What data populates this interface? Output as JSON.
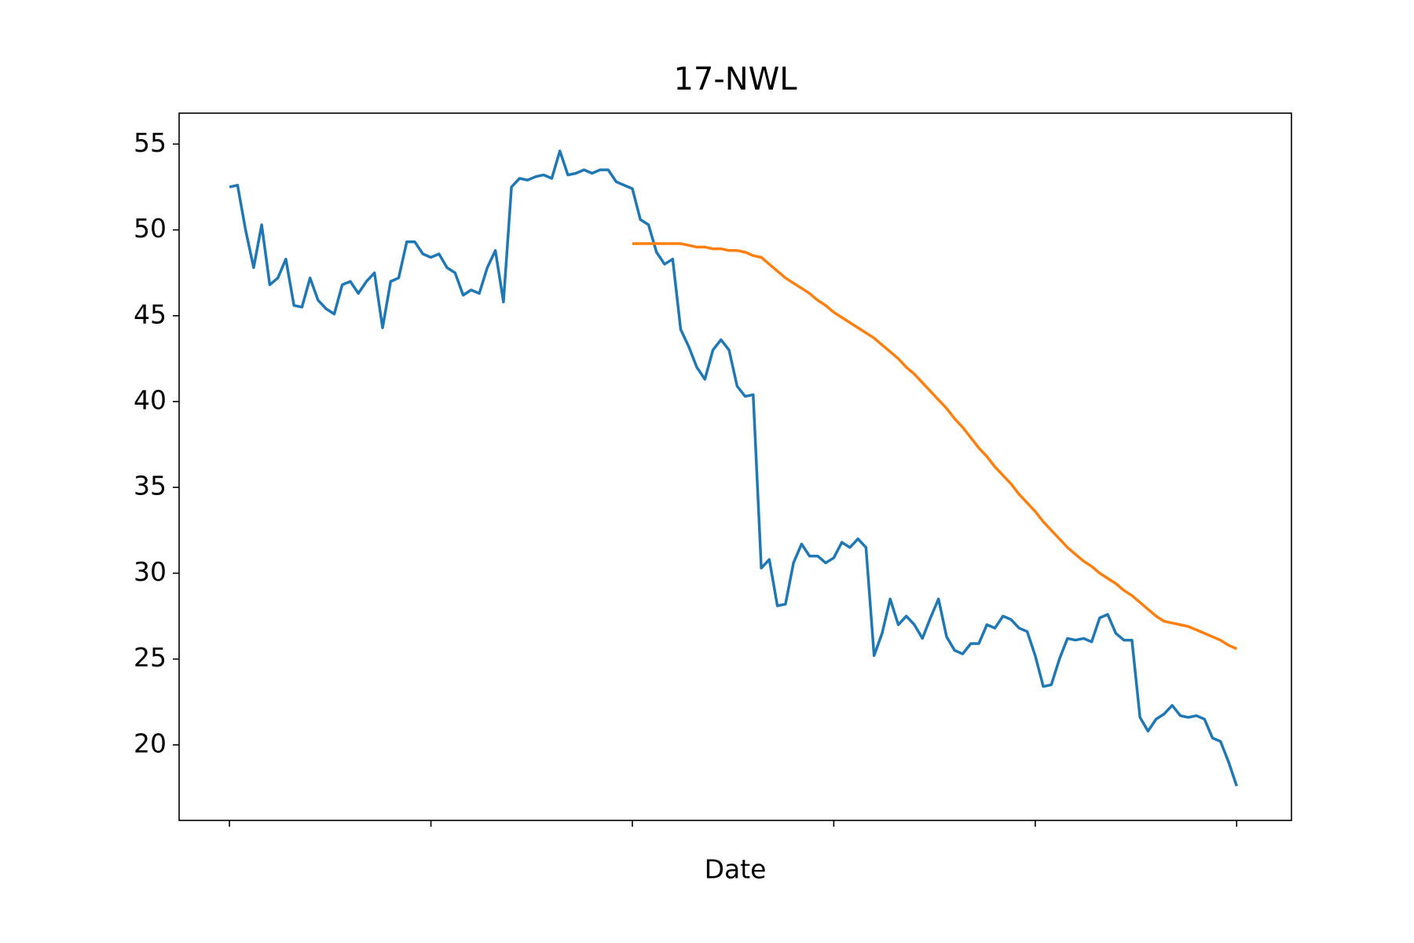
{
  "chart_data": {
    "type": "line",
    "title": "17-NWL",
    "x_label": "Date",
    "series": [
      {
        "color": "#1f77b4",
        "values": [
          52.5,
          52.6,
          50,
          47.8,
          50.3,
          46.8,
          47.2,
          48.3,
          45.6,
          45.5,
          47.2,
          45.9,
          45.4,
          45.1,
          46.8,
          47.0,
          46.3,
          47.0,
          47.5,
          44.3,
          47.0,
          47.2,
          49.3,
          49.3,
          48.6,
          48.4,
          48.6,
          47.8,
          47.5,
          46.2,
          46.5,
          46.3,
          47.8,
          48.8,
          45.8,
          52.5,
          53,
          52.9,
          53.1,
          53.2,
          53.0,
          54.6,
          53.2,
          53.3,
          53.5,
          53.3,
          53.5,
          53.5,
          52.8,
          52.6,
          52.4,
          50.6,
          50.3,
          48.7,
          48.0,
          48.3,
          44.2,
          43.2,
          42.0,
          41.3,
          43.0,
          43.6,
          43.0,
          40.9,
          40.3,
          40.4,
          30.3,
          30.8,
          28.1,
          28.2,
          30.6,
          31.7,
          31.0,
          31.0,
          30.6,
          30.9,
          31.8,
          31.5,
          32.0,
          31.5,
          25.2,
          26.5,
          28.5,
          27.0,
          27.5,
          27.0,
          26.2,
          27.4,
          28.5,
          26.3,
          25.5,
          25.3,
          25.9,
          25.9,
          27.0,
          26.8,
          27.5,
          27.3,
          26.8,
          26.6,
          25.2,
          23.4,
          23.5,
          25.0,
          26.2,
          26.1,
          26.2,
          26.0,
          27.4,
          27.6,
          26.5,
          26.1,
          26.1,
          21.6,
          20.8,
          21.5,
          21.8,
          22.3,
          21.7,
          21.6,
          21.7,
          21.5,
          20.4,
          20.2,
          19.0,
          17.6
        ]
      },
      {
        "color": "#ff7f0e",
        "values": [
          null,
          null,
          null,
          null,
          null,
          null,
          null,
          null,
          null,
          null,
          null,
          null,
          null,
          null,
          null,
          null,
          null,
          null,
          null,
          null,
          null,
          null,
          null,
          null,
          null,
          null,
          null,
          null,
          null,
          null,
          null,
          null,
          null,
          null,
          null,
          null,
          null,
          null,
          null,
          null,
          null,
          null,
          null,
          null,
          null,
          null,
          null,
          null,
          null,
          null,
          49.2,
          49.2,
          49.2,
          49.2,
          49.2,
          49.2,
          49.2,
          49.1,
          49.0,
          49.0,
          48.9,
          48.9,
          48.8,
          48.8,
          48.7,
          48.5,
          48.4,
          48.0,
          47.6,
          47.2,
          46.9,
          46.6,
          46.3,
          45.9,
          45.6,
          45.2,
          44.9,
          44.6,
          44.3,
          44.0,
          43.7,
          43.3,
          42.9,
          42.5,
          42.0,
          41.6,
          41.1,
          40.6,
          40.1,
          39.6,
          39.0,
          38.5,
          37.9,
          37.3,
          36.8,
          36.2,
          35.7,
          35.2,
          34.6,
          34.1,
          33.6,
          33.0,
          32.5,
          32.0,
          31.5,
          31.1,
          30.7,
          30.4,
          30.0,
          29.7,
          29.4,
          29.0,
          28.7,
          28.3,
          27.9,
          27.5,
          27.2,
          27.1,
          27.0,
          26.9,
          26.7,
          26.5,
          26.3,
          26.1,
          25.8,
          25.6
        ]
      }
    ],
    "xlim": [
      -6.25,
      131.8
    ],
    "xticks": [
      0,
      25,
      50,
      75,
      100,
      125
    ],
    "ylim": [
      15.6,
      56.8
    ],
    "yticks": [
      20,
      25,
      30,
      35,
      40,
      45,
      50,
      55
    ]
  }
}
